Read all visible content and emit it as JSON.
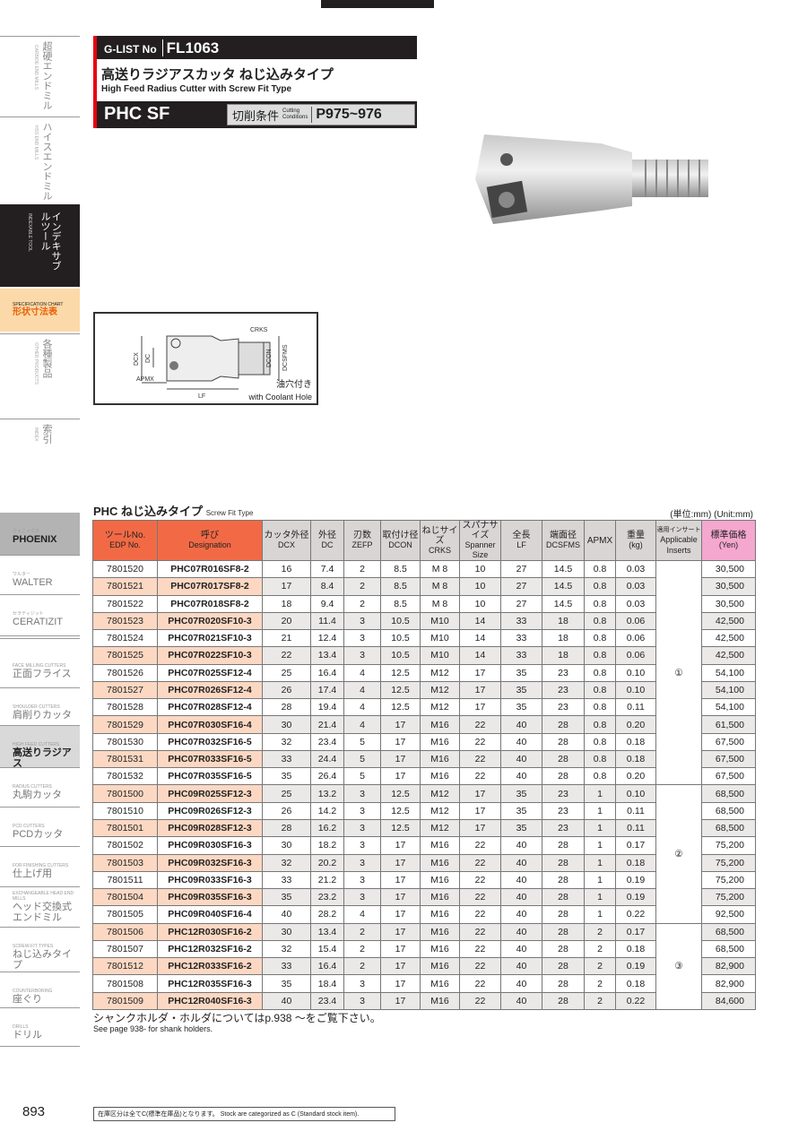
{
  "header": {
    "glist_label": "G-LIST No",
    "glist_no": "FL1063",
    "title_jp": "高送りラジアスカッタ ねじ込みタイプ",
    "title_en": "High Feed Radius Cutter with Screw Fit Type",
    "series": "PHC SF",
    "cutting_jp": "切削条件",
    "cutting_en1": "Cutting",
    "cutting_en2": "Conditions",
    "cutting_pages": "P975~976"
  },
  "sidebar": {
    "top": [
      {
        "jp": "超硬エンドミル",
        "en": "CARBIDE END MILLS"
      },
      {
        "jp": "ハイスエンドミル",
        "en": "HSS END MILLS"
      },
      {
        "jp": "インデキサブルツール",
        "en": "INDEXABLE TOOL"
      },
      {
        "jp": "形状寸法表",
        "en": "SPECIFICATION CHART"
      },
      {
        "jp": "各種製品",
        "en": "OTHER PRODUCTS"
      },
      {
        "jp": "索引",
        "en": "INDEX"
      }
    ],
    "brands": [
      {
        "s": "フェニックス",
        "b": "PHOENIX"
      },
      {
        "s": "ワルター",
        "b": "WALTER"
      },
      {
        "s": "セラティジット",
        "b": "CERATIZIT"
      },
      {
        "s": "FACE MILLING CUTTERS",
        "b": "正面フライス"
      },
      {
        "s": "SHOULDER CUTTERS",
        "b": "肩削りカッタ"
      },
      {
        "s": "HIGH FEED CUTTERS",
        "b": "高送りラジアス"
      },
      {
        "s": "RADIUS CUTTERS",
        "b": "丸駒カッタ"
      },
      {
        "s": "PCD CUTTERS",
        "b": "PCDカッタ"
      },
      {
        "s": "FOR FINISHING CUTTERS",
        "b": "仕上げ用"
      },
      {
        "s": "EXCHANGEABLE HEAD END MILLS",
        "b": "ヘッド交換式エンドミル"
      },
      {
        "s": "SCREW-FIT TYPES",
        "b": "ねじ込みタイプ"
      },
      {
        "s": "COUNTERBORING",
        "b": "座ぐり"
      },
      {
        "s": "DRILLS",
        "b": "ドリル"
      }
    ]
  },
  "diagram": {
    "labels": [
      "CRKS",
      "DCX",
      "DC",
      "DCON",
      "DCSFMS",
      "APMX",
      "LF"
    ],
    "coolant_jp": "油穴付き",
    "coolant_en": "with Coolant Hole"
  },
  "section": {
    "title": "PHC ねじ込みタイプ",
    "subtitle": "Screw Fit Type",
    "unit": "(単位:mm) (Unit:mm)"
  },
  "table": {
    "headers": [
      {
        "jp": "ツールNo.",
        "en": "EDP No."
      },
      {
        "jp": "呼び",
        "en": "Designation"
      },
      {
        "jp": "カッタ外径",
        "en": "DCX"
      },
      {
        "jp": "外径",
        "en": "DC"
      },
      {
        "jp": "刃数",
        "en": "ZEFP"
      },
      {
        "jp": "取付け径",
        "en": "DCON"
      },
      {
        "jp": "ねじサイズ",
        "en": "CRKS"
      },
      {
        "jp": "スパナサイズ",
        "en": "Spanner Size"
      },
      {
        "jp": "全長",
        "en": "LF"
      },
      {
        "jp": "端面径",
        "en": "DCSFMS"
      },
      {
        "jp": "APMX",
        "en": ""
      },
      {
        "jp": "重量",
        "en": "(kg)"
      },
      {
        "jp": "適用インサート",
        "en": "Applicable Inserts"
      },
      {
        "jp": "標準価格",
        "en": "(Yen)"
      }
    ],
    "rows": [
      [
        "7801520",
        "PHC07R016SF8-2",
        "16",
        "7.4",
        "2",
        "8.5",
        "M 8",
        "10",
        "27",
        "14.5",
        "0.8",
        "0.03",
        "30,500"
      ],
      [
        "7801521",
        "PHC07R017SF8-2",
        "17",
        "8.4",
        "2",
        "8.5",
        "M 8",
        "10",
        "27",
        "14.5",
        "0.8",
        "0.03",
        "30,500"
      ],
      [
        "7801522",
        "PHC07R018SF8-2",
        "18",
        "9.4",
        "2",
        "8.5",
        "M 8",
        "10",
        "27",
        "14.5",
        "0.8",
        "0.03",
        "30,500"
      ],
      [
        "7801523",
        "PHC07R020SF10-3",
        "20",
        "11.4",
        "3",
        "10.5",
        "M10",
        "14",
        "33",
        "18",
        "0.8",
        "0.06",
        "42,500"
      ],
      [
        "7801524",
        "PHC07R021SF10-3",
        "21",
        "12.4",
        "3",
        "10.5",
        "M10",
        "14",
        "33",
        "18",
        "0.8",
        "0.06",
        "42,500"
      ],
      [
        "7801525",
        "PHC07R022SF10-3",
        "22",
        "13.4",
        "3",
        "10.5",
        "M10",
        "14",
        "33",
        "18",
        "0.8",
        "0.06",
        "42,500"
      ],
      [
        "7801526",
        "PHC07R025SF12-4",
        "25",
        "16.4",
        "4",
        "12.5",
        "M12",
        "17",
        "35",
        "23",
        "0.8",
        "0.10",
        "54,100"
      ],
      [
        "7801527",
        "PHC07R026SF12-4",
        "26",
        "17.4",
        "4",
        "12.5",
        "M12",
        "17",
        "35",
        "23",
        "0.8",
        "0.10",
        "54,100"
      ],
      [
        "7801528",
        "PHC07R028SF12-4",
        "28",
        "19.4",
        "4",
        "12.5",
        "M12",
        "17",
        "35",
        "23",
        "0.8",
        "0.11",
        "54,100"
      ],
      [
        "7801529",
        "PHC07R030SF16-4",
        "30",
        "21.4",
        "4",
        "17",
        "M16",
        "22",
        "40",
        "28",
        "0.8",
        "0.20",
        "61,500"
      ],
      [
        "7801530",
        "PHC07R032SF16-5",
        "32",
        "23.4",
        "5",
        "17",
        "M16",
        "22",
        "40",
        "28",
        "0.8",
        "0.18",
        "67,500"
      ],
      [
        "7801531",
        "PHC07R033SF16-5",
        "33",
        "24.4",
        "5",
        "17",
        "M16",
        "22",
        "40",
        "28",
        "0.8",
        "0.18",
        "67,500"
      ],
      [
        "7801532",
        "PHC07R035SF16-5",
        "35",
        "26.4",
        "5",
        "17",
        "M16",
        "22",
        "40",
        "28",
        "0.8",
        "0.20",
        "67,500"
      ],
      [
        "7801500",
        "PHC09R025SF12-3",
        "25",
        "13.2",
        "3",
        "12.5",
        "M12",
        "17",
        "35",
        "23",
        "1",
        "0.10",
        "68,500"
      ],
      [
        "7801510",
        "PHC09R026SF12-3",
        "26",
        "14.2",
        "3",
        "12.5",
        "M12",
        "17",
        "35",
        "23",
        "1",
        "0.11",
        "68,500"
      ],
      [
        "7801501",
        "PHC09R028SF12-3",
        "28",
        "16.2",
        "3",
        "12.5",
        "M12",
        "17",
        "35",
        "23",
        "1",
        "0.11",
        "68,500"
      ],
      [
        "7801502",
        "PHC09R030SF16-3",
        "30",
        "18.2",
        "3",
        "17",
        "M16",
        "22",
        "40",
        "28",
        "1",
        "0.17",
        "75,200"
      ],
      [
        "7801503",
        "PHC09R032SF16-3",
        "32",
        "20.2",
        "3",
        "17",
        "M16",
        "22",
        "40",
        "28",
        "1",
        "0.18",
        "75,200"
      ],
      [
        "7801511",
        "PHC09R033SF16-3",
        "33",
        "21.2",
        "3",
        "17",
        "M16",
        "22",
        "40",
        "28",
        "1",
        "0.19",
        "75,200"
      ],
      [
        "7801504",
        "PHC09R035SF16-3",
        "35",
        "23.2",
        "3",
        "17",
        "M16",
        "22",
        "40",
        "28",
        "1",
        "0.19",
        "75,200"
      ],
      [
        "7801505",
        "PHC09R040SF16-4",
        "40",
        "28.2",
        "4",
        "17",
        "M16",
        "22",
        "40",
        "28",
        "1",
        "0.22",
        "92,500"
      ],
      [
        "7801506",
        "PHC12R030SF16-2",
        "30",
        "13.4",
        "2",
        "17",
        "M16",
        "22",
        "40",
        "28",
        "2",
        "0.17",
        "68,500"
      ],
      [
        "7801507",
        "PHC12R032SF16-2",
        "32",
        "15.4",
        "2",
        "17",
        "M16",
        "22",
        "40",
        "28",
        "2",
        "0.18",
        "68,500"
      ],
      [
        "7801512",
        "PHC12R033SF16-2",
        "33",
        "16.4",
        "2",
        "17",
        "M16",
        "22",
        "40",
        "28",
        "2",
        "0.19",
        "82,900"
      ],
      [
        "7801508",
        "PHC12R035SF16-3",
        "35",
        "18.4",
        "3",
        "17",
        "M16",
        "22",
        "40",
        "28",
        "2",
        "0.18",
        "82,900"
      ],
      [
        "7801509",
        "PHC12R040SF16-3",
        "40",
        "23.4",
        "3",
        "17",
        "M16",
        "22",
        "40",
        "28",
        "2",
        "0.22",
        "84,600"
      ]
    ],
    "insert_groups": [
      {
        "label": "①",
        "rows": 13
      },
      {
        "label": "②",
        "rows": 8
      },
      {
        "label": "③",
        "rows": 5
      }
    ]
  },
  "notes": {
    "jp": "シャンクホルダ・ホルダについてはp.938 ～をご覧下さい。",
    "en": "See page 938- for shank holders."
  },
  "footer": {
    "page": "893",
    "stock": "在庫区分は全てC(標準在庫品)となります。 Stock are categorized as C (Standard stock item)."
  }
}
